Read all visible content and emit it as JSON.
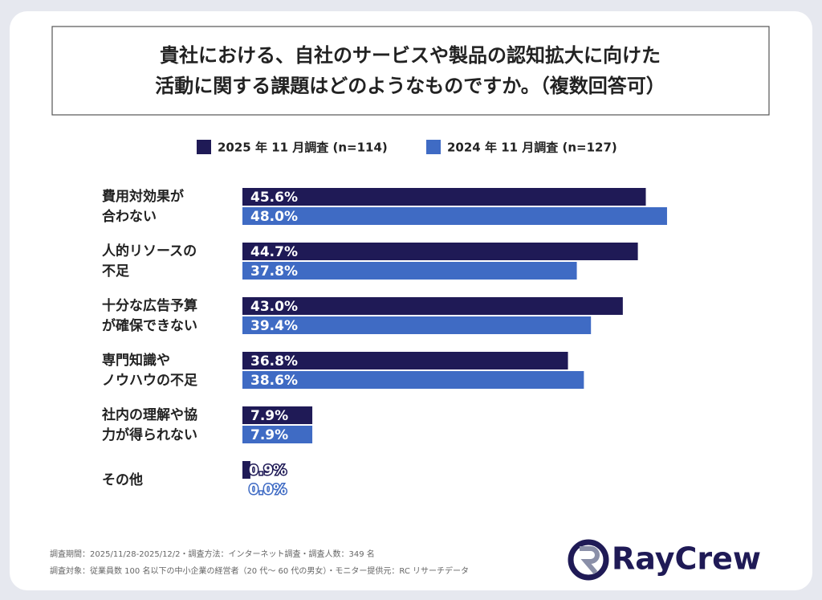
{
  "title": [
    "貴社における、自社のサービスや製品の認知拡大に向けた",
    "活動に関する課題はどのようなものですか。（複数回答可）"
  ],
  "chart_data": {
    "type": "bar",
    "orientation": "horizontal",
    "categories": [
      [
        "費用対効果が",
        "合わない"
      ],
      [
        "人的リソースの",
        "不足"
      ],
      [
        "十分な広告予算",
        "が確保できない"
      ],
      [
        "専門知識や",
        "ノウハウの不足"
      ],
      [
        "社内の理解や協",
        "力が得られない"
      ],
      [
        "その他"
      ]
    ],
    "series": [
      {
        "name": "2025 年 11 月調査 (n=114)",
        "color": "#1f1a56",
        "values": [
          45.6,
          44.7,
          43.0,
          36.8,
          7.9,
          0.9
        ],
        "value_labels": [
          "45.6%",
          "44.7%",
          "43.0%",
          "36.8%",
          "7.9%",
          "0.9%"
        ]
      },
      {
        "name": "2024 年 11 月調査 (n=127)",
        "color": "#3f6bc4",
        "values": [
          48.0,
          37.8,
          39.4,
          38.6,
          7.9,
          0.0
        ],
        "value_labels": [
          "48.0%",
          "37.8%",
          "39.4%",
          "38.6%",
          "7.9%",
          "0.0%"
        ]
      }
    ]
  },
  "footer": [
    "調査期間：2025/11/28-2025/12/2・調査方法：インターネット調査・調査人数：349 名",
    "調査対象：従業員数 100 名以下の中小企業の経営者（20 代～ 60 代の男女）・モニター提供元：RC リサーチデータ"
  ],
  "logo": "RayCrew"
}
